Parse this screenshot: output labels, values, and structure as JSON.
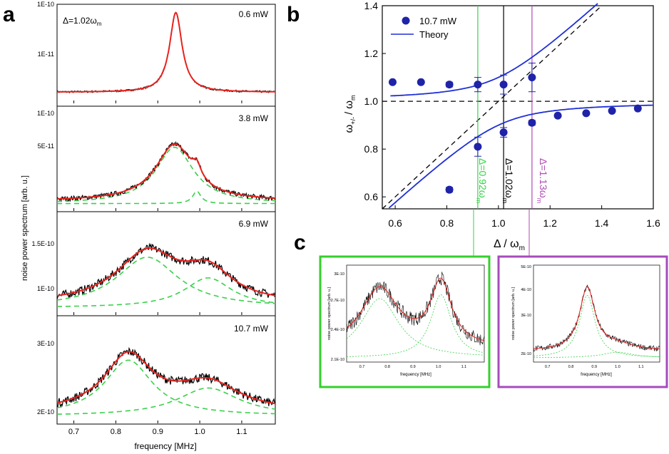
{
  "panel_letters": {
    "a": "a",
    "b": "b",
    "c": "c"
  },
  "panel_a": {
    "detuning_label": "Δ=1.02ω",
    "detuning_sub": "m",
    "ylabel": "noise power spectrum [arb. u.]",
    "xlabel": "frequency [MHz]",
    "xticks": [
      "0.7",
      "0.8",
      "0.9",
      "1.0",
      "1.1"
    ],
    "xticks_values": [
      0.7,
      0.8,
      0.9,
      1.0,
      1.1
    ],
    "xlim": [
      0.66,
      1.18
    ],
    "subplots": [
      {
        "power": "0.6 mW",
        "yticks": [
          "1E-10",
          "1E-11"
        ],
        "colors": {
          "data": "#000000",
          "fit": "#e8231e"
        }
      },
      {
        "power": "3.8 mW",
        "yticks": [
          "1E-10",
          "5E-11"
        ],
        "colors": {
          "data": "#000000",
          "fit": "#e8231e",
          "components": "#38d14a"
        }
      },
      {
        "power": "6.9 mW",
        "yticks": [
          "1.5E-10",
          "1E-10"
        ],
        "colors": {
          "data": "#000000",
          "fit": "#e8231e",
          "components": "#38d14a"
        }
      },
      {
        "power": "10.7 mW",
        "yticks": [
          "3E-10",
          "2E-10"
        ],
        "colors": {
          "data": "#000000",
          "fit": "#e8231e",
          "components": "#38d14a"
        }
      }
    ]
  },
  "chart_data": [
    {
      "id": "b",
      "type": "scatter",
      "title": "",
      "xlabel": "Δ / ω",
      "xlabel_sub": "m",
      "ylabel": "ω+/- / ω",
      "ylabel_parts": {
        "sym": "ω",
        "sub": "+/-",
        "den": "/ ω",
        "den_sub": "m"
      },
      "xlim": [
        0.55,
        1.6
      ],
      "ylim": [
        0.55,
        1.4
      ],
      "xticks": [
        "0.6",
        "0.8",
        "1.0",
        "1.2",
        "1.4",
        "1.6"
      ],
      "yticks": [
        "0.6",
        "0.8",
        "1.0",
        "1.2",
        "1.4"
      ],
      "xtick_values": [
        0.6,
        0.8,
        1.0,
        1.2,
        1.4,
        1.6
      ],
      "ytick_values": [
        0.6,
        0.8,
        1.0,
        1.2,
        1.4
      ],
      "legend": {
        "points": "10.7 mW",
        "line": "Theory",
        "position": "top-left"
      },
      "series": [
        {
          "name": "upper branch (10.7 mW)",
          "x": [
            0.59,
            0.7,
            0.81,
            0.92,
            1.02,
            1.13
          ],
          "y": [
            1.08,
            1.08,
            1.07,
            1.07,
            1.07,
            1.1
          ],
          "err": [
            0.0,
            0.0,
            0.01,
            0.03,
            0.04,
            0.06
          ]
        },
        {
          "name": "lower branch (10.7 mW)",
          "x": [
            0.81,
            0.92,
            1.02,
            1.13,
            1.23,
            1.34,
            1.44,
            1.54
          ],
          "y": [
            0.63,
            0.81,
            0.87,
            0.91,
            0.94,
            0.95,
            0.96,
            0.97
          ],
          "err": [
            0.01,
            0.04,
            0.02,
            0.01,
            0.0,
            0.0,
            0.0,
            0.0
          ]
        }
      ],
      "theory": {
        "coupling_g": 0.1,
        "desc": "omega = (1+d)/2 ± sqrt(((d-1)/2)^2 + g^2)"
      },
      "vlines": [
        {
          "x": 0.92,
          "label": "Δ=0.92ω",
          "sub": "m",
          "color": "#38d14a"
        },
        {
          "x": 1.02,
          "label": "Δ=1.02ω",
          "sub": "m",
          "color": "#000000"
        },
        {
          "x": 1.13,
          "label": "Δ=1.13ω",
          "sub": "m",
          "color": "#b14ab5"
        }
      ],
      "hline": {
        "y": 1.0
      },
      "diagonal": {
        "from": [
          0.55,
          0.55
        ],
        "to": [
          1.6,
          1.6
        ]
      },
      "colors": {
        "points": "#1f23a8",
        "theory": "#1f2fd6"
      }
    },
    {
      "id": "c-left",
      "type": "line",
      "xlabel": "frequency [MHz]",
      "ylabel": "noise power spectrum [arb. u.]",
      "xticks": [
        "0.7",
        "0.8",
        "0.9",
        "1.0",
        "1.1"
      ],
      "yticks": [
        "3E-10",
        "2.7E-10",
        "2.4E-10",
        "2.1E-10"
      ],
      "frame_color": "#35cf2c"
    },
    {
      "id": "c-right",
      "type": "line",
      "xlabel": "frequency [MHz]",
      "ylabel": "noise power spectrum [arb. u.]",
      "xticks": [
        "0.7",
        "0.8",
        "0.9",
        "1.0",
        "1.1"
      ],
      "yticks": [
        "5E-10",
        "4E-10",
        "3E-10",
        "2E-10"
      ],
      "frame_color": "#a64bbb"
    }
  ]
}
